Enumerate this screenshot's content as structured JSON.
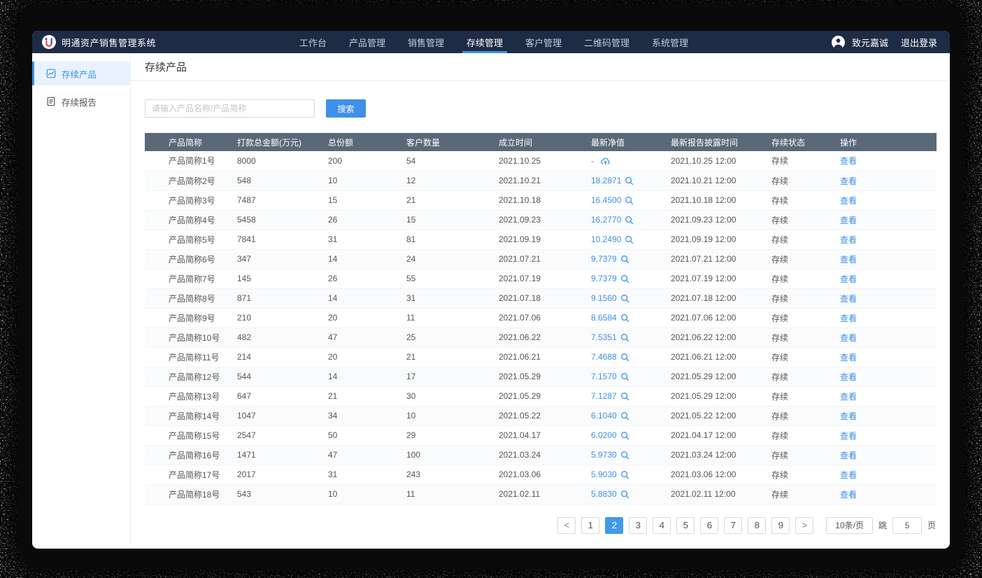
{
  "colors": {
    "nav_bg": "#1e2b45",
    "accent": "#3e90e8",
    "table_header_bg": "#5a6978",
    "sidebar_active_bg": "#e8f3ff"
  },
  "app": {
    "title": "明通资产销售管理系统",
    "nav": {
      "items": [
        {
          "label": "工作台",
          "active": false
        },
        {
          "label": "产品管理",
          "active": false
        },
        {
          "label": "销售管理",
          "active": false
        },
        {
          "label": "存续管理",
          "active": true
        },
        {
          "label": "客户管理",
          "active": false
        },
        {
          "label": "二维码管理",
          "active": false
        },
        {
          "label": "系统管理",
          "active": false
        }
      ]
    },
    "user": {
      "avatar_icon": "user-avatar-icon",
      "name": "致元嘉诚",
      "logout": "退出登录"
    }
  },
  "sidebar": {
    "items": [
      {
        "label": "存续产品",
        "icon": "trend-chart-icon",
        "active": true
      },
      {
        "label": "存续报告",
        "icon": "report-document-icon",
        "active": false
      }
    ]
  },
  "page": {
    "title": "存续产品"
  },
  "search": {
    "placeholder": "请输入产品名称/产品简称",
    "button": "搜索"
  },
  "table": {
    "columns": [
      "产品简称",
      "打款总金额(万元)",
      "总份额",
      "客户数量",
      "成立时间",
      "最新净值",
      "最新报告披露时间",
      "存续状态",
      "操作"
    ],
    "rows": [
      {
        "name": "产品简称1号",
        "amount": "8000",
        "shares": "200",
        "customers": "54",
        "established": "2021.10.25",
        "net_value": "-",
        "net_icon": "cloud-upload-icon",
        "report_time": "2021.10.25 12:00",
        "status": "存续",
        "action": "查看"
      },
      {
        "name": "产品简称2号",
        "amount": "548",
        "shares": "10",
        "customers": "12",
        "established": "2021.10.21",
        "net_value": "18.2871",
        "net_icon": "magnifier-icon",
        "report_time": "2021.10.21 12:00",
        "status": "存续",
        "action": "查看"
      },
      {
        "name": "产品简称3号",
        "amount": "7487",
        "shares": "15",
        "customers": "21",
        "established": "2021.10.18",
        "net_value": "16.4500",
        "net_icon": "magnifier-icon",
        "report_time": "2021.10.18 12:00",
        "status": "存续",
        "action": "查看"
      },
      {
        "name": "产品简称4号",
        "amount": "5458",
        "shares": "26",
        "customers": "15",
        "established": "2021.09.23",
        "net_value": "16.2770",
        "net_icon": "magnifier-icon",
        "report_time": "2021.09.23 12:00",
        "status": "存续",
        "action": "查看"
      },
      {
        "name": "产品简称5号",
        "amount": "7841",
        "shares": "31",
        "customers": "81",
        "established": "2021.09.19",
        "net_value": "10.2490",
        "net_icon": "magnifier-icon",
        "report_time": "2021.09.19 12:00",
        "status": "存续",
        "action": "查看"
      },
      {
        "name": "产品简称6号",
        "amount": "347",
        "shares": "14",
        "customers": "24",
        "established": "2021.07.21",
        "net_value": "9.7379",
        "net_icon": "magnifier-icon",
        "report_time": "2021.07.21 12:00",
        "status": "存续",
        "action": "查看"
      },
      {
        "name": "产品简称7号",
        "amount": "145",
        "shares": "26",
        "customers": "55",
        "established": "2021.07.19",
        "net_value": "9.7379",
        "net_icon": "magnifier-icon",
        "report_time": "2021.07.19 12:00",
        "status": "存续",
        "action": "查看"
      },
      {
        "name": "产品简称8号",
        "amount": "871",
        "shares": "14",
        "customers": "31",
        "established": "2021.07.18",
        "net_value": "9.1560",
        "net_icon": "magnifier-icon",
        "report_time": "2021.07.18 12:00",
        "status": "存续",
        "action": "查看"
      },
      {
        "name": "产品简称9号",
        "amount": "210",
        "shares": "20",
        "customers": "11",
        "established": "2021.07.06",
        "net_value": "8.6584",
        "net_icon": "magnifier-icon",
        "report_time": "2021.07.06 12:00",
        "status": "存续",
        "action": "查看"
      },
      {
        "name": "产品简称10号",
        "amount": "482",
        "shares": "47",
        "customers": "25",
        "established": "2021.06.22",
        "net_value": "7.5351",
        "net_icon": "magnifier-icon",
        "report_time": "2021.06.22 12:00",
        "status": "存续",
        "action": "查看"
      },
      {
        "name": "产品简称11号",
        "amount": "214",
        "shares": "20",
        "customers": "21",
        "established": "2021.06.21",
        "net_value": "7.4688",
        "net_icon": "magnifier-icon",
        "report_time": "2021.06.21 12:00",
        "status": "存续",
        "action": "查看"
      },
      {
        "name": "产品简称12号",
        "amount": "544",
        "shares": "14",
        "customers": "17",
        "established": "2021.05.29",
        "net_value": "7.1570",
        "net_icon": "magnifier-icon",
        "report_time": "2021.05.29 12:00",
        "status": "存续",
        "action": "查看"
      },
      {
        "name": "产品简称13号",
        "amount": "647",
        "shares": "21",
        "customers": "30",
        "established": "2021.05.29",
        "net_value": "7.1287",
        "net_icon": "magnifier-icon",
        "report_time": "2021.05.29 12:00",
        "status": "存续",
        "action": "查看"
      },
      {
        "name": "产品简称14号",
        "amount": "1047",
        "shares": "34",
        "customers": "10",
        "established": "2021.05.22",
        "net_value": "6.1040",
        "net_icon": "magnifier-icon",
        "report_time": "2021.05.22 12:00",
        "status": "存续",
        "action": "查看"
      },
      {
        "name": "产品简称15号",
        "amount": "2547",
        "shares": "50",
        "customers": "29",
        "established": "2021.04.17",
        "net_value": "6.0200",
        "net_icon": "magnifier-icon",
        "report_time": "2021.04.17 12:00",
        "status": "存续",
        "action": "查看"
      },
      {
        "name": "产品简称16号",
        "amount": "1471",
        "shares": "47",
        "customers": "100",
        "established": "2021.03.24",
        "net_value": "5.9730",
        "net_icon": "magnifier-icon",
        "report_time": "2021.03.24 12:00",
        "status": "存续",
        "action": "查看"
      },
      {
        "name": "产品简称17号",
        "amount": "2017",
        "shares": "31",
        "customers": "243",
        "established": "2021.03.06",
        "net_value": "5.9030",
        "net_icon": "magnifier-icon",
        "report_time": "2021.03.06 12:00",
        "status": "存续",
        "action": "查看"
      },
      {
        "name": "产品简称18号",
        "amount": "543",
        "shares": "10",
        "customers": "11",
        "established": "2021.02.11",
        "net_value": "5.8830",
        "net_icon": "magnifier-icon",
        "report_time": "2021.02.11 12:00",
        "status": "存续",
        "action": "查看"
      }
    ]
  },
  "pagination": {
    "prev_icon": "chevron-left-icon",
    "next_icon": "chevron-right-icon",
    "pages": [
      "1",
      "2",
      "3",
      "4",
      "5",
      "6",
      "7",
      "8",
      "9"
    ],
    "active": "2",
    "page_size": "10条/页",
    "jump_label": "跳",
    "jump_value": "5",
    "page_suffix": "页"
  }
}
